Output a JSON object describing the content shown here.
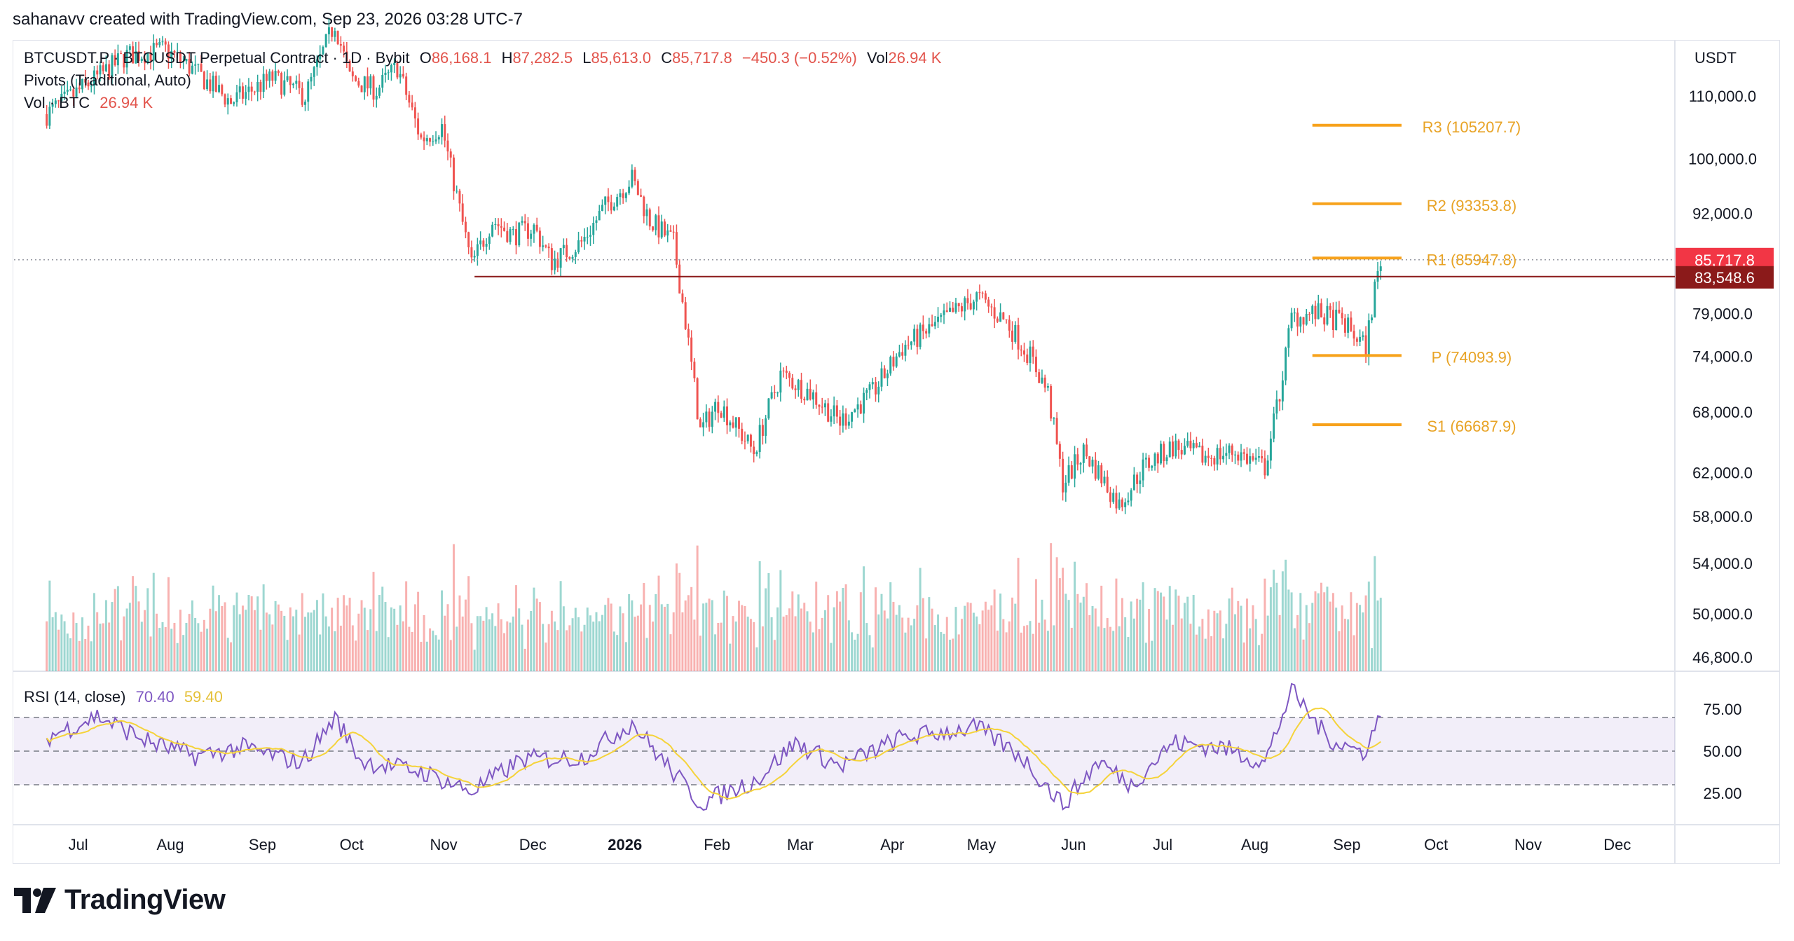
{
  "header": {
    "attribution": "sahanavv created with TradingView.com, Sep 23, 2026 03:28 UTC-7"
  },
  "legend": {
    "symbol": "BTCUSDT.P · BTCUSDT Perpetual Contract · 1D · Bybit",
    "o_label": "O",
    "o_value": "86,168.1",
    "h_label": "H",
    "h_value": "87,282.5",
    "l_label": "L",
    "l_value": "85,613.0",
    "c_label": "C",
    "c_value": "85,717.8",
    "change": "−450.3 (−0.52%)",
    "vol_label": "Vol",
    "vol_value": "26.94 K",
    "pivots": "Pivots (Traditional, Auto)",
    "vol_btc_label": "Vol · BTC",
    "vol_btc_value": "26.94 K"
  },
  "rsi_legend": {
    "label": "RSI (14, close)",
    "rsi_value": "70.40",
    "ma_value": "59.40"
  },
  "brand": {
    "name": "TradingView",
    "icon": "tradingview-logo-icon"
  },
  "colors": {
    "up": "#26a69a",
    "down": "#ef5350",
    "pivot": "#f7a21b",
    "pivot_text": "#e8a325",
    "rsi": "#7e57c2",
    "rsi_ma": "#f5d33a",
    "support_line": "#8b1a1a",
    "price_badge": "#f23645",
    "support_badge": "#8b1a1a"
  },
  "chart_data": {
    "type": "candlestick",
    "currency": "USDT",
    "price_scale": "log",
    "price_ticks": [
      110000,
      100000,
      92000,
      79000,
      74000,
      68000,
      62000,
      58000,
      54000,
      50000,
      46800
    ],
    "price_tick_labels": [
      "110,000.0",
      "100,000.0",
      "92,000.0",
      "79,000.0",
      "74,000.0",
      "68,000.0",
      "62,000.0",
      "58,000.0",
      "54,000.0",
      "50,000.0",
      "46,800.0"
    ],
    "x_labels": [
      "Jul",
      "Aug",
      "Sep",
      "Oct",
      "Nov",
      "Dec",
      "2026",
      "Feb",
      "Mar",
      "Apr",
      "May",
      "Jun",
      "Jul",
      "Aug",
      "Sep",
      "Oct",
      "Nov",
      "Dec"
    ],
    "x_label_bold": "2026",
    "price_path": [
      {
        "date": "2025-07-01",
        "price": 107000
      },
      {
        "date": "2025-07-15",
        "price": 112000
      },
      {
        "date": "2025-07-28",
        "price": 117000
      },
      {
        "date": "2025-08-10",
        "price": 118000
      },
      {
        "date": "2025-08-18",
        "price": 115000
      },
      {
        "date": "2025-09-01",
        "price": 109000
      },
      {
        "date": "2025-09-15",
        "price": 113000
      },
      {
        "date": "2025-09-26",
        "price": 110000
      },
      {
        "date": "2025-10-06",
        "price": 123000
      },
      {
        "date": "2025-10-11",
        "price": 113000
      },
      {
        "date": "2025-10-20",
        "price": 111000
      },
      {
        "date": "2025-10-27",
        "price": 115000
      },
      {
        "date": "2025-11-04",
        "price": 103000
      },
      {
        "date": "2025-11-11",
        "price": 105000
      },
      {
        "date": "2025-11-21",
        "price": 85000
      },
      {
        "date": "2025-11-28",
        "price": 91000
      },
      {
        "date": "2025-12-05",
        "price": 89000
      },
      {
        "date": "2025-12-12",
        "price": 90000
      },
      {
        "date": "2025-12-18",
        "price": 85500
      },
      {
        "date": "2025-12-28",
        "price": 88000
      },
      {
        "date": "2026-01-05",
        "price": 93000
      },
      {
        "date": "2026-01-14",
        "price": 97000
      },
      {
        "date": "2026-01-20",
        "price": 91000
      },
      {
        "date": "2026-01-28",
        "price": 88000
      },
      {
        "date": "2026-02-01",
        "price": 78000
      },
      {
        "date": "2026-02-06",
        "price": 66000
      },
      {
        "date": "2026-02-12",
        "price": 69000
      },
      {
        "date": "2026-02-24",
        "price": 64000
      },
      {
        "date": "2026-03-05",
        "price": 72000
      },
      {
        "date": "2026-03-15",
        "price": 70000
      },
      {
        "date": "2026-03-25",
        "price": 67000
      },
      {
        "date": "2026-04-05",
        "price": 70000
      },
      {
        "date": "2026-04-15",
        "price": 75000
      },
      {
        "date": "2026-04-28",
        "price": 78000
      },
      {
        "date": "2026-05-10",
        "price": 81000
      },
      {
        "date": "2026-05-20",
        "price": 78000
      },
      {
        "date": "2026-05-28",
        "price": 74000
      },
      {
        "date": "2026-06-03",
        "price": 70000
      },
      {
        "date": "2026-06-08",
        "price": 61000
      },
      {
        "date": "2026-06-15",
        "price": 64000
      },
      {
        "date": "2026-06-20",
        "price": 62000
      },
      {
        "date": "2026-06-27",
        "price": 59000
      },
      {
        "date": "2026-07-05",
        "price": 62500
      },
      {
        "date": "2026-07-15",
        "price": 64500
      },
      {
        "date": "2026-07-25",
        "price": 63500
      },
      {
        "date": "2026-08-05",
        "price": 64000
      },
      {
        "date": "2026-08-15",
        "price": 62500
      },
      {
        "date": "2026-08-20",
        "price": 70000
      },
      {
        "date": "2026-08-24",
        "price": 78500
      },
      {
        "date": "2026-09-01",
        "price": 79000
      },
      {
        "date": "2026-09-10",
        "price": 78000
      },
      {
        "date": "2026-09-18",
        "price": 75000
      },
      {
        "date": "2026-09-21",
        "price": 82000
      },
      {
        "date": "2026-09-23",
        "price": 85717.8
      }
    ],
    "last_price": "85,717.8",
    "horizontal_line": {
      "price": 83548.6,
      "label": "83,548.6",
      "from_date": "2025-11-22"
    },
    "pivots": [
      {
        "name": "R3",
        "value": 105207.7,
        "label": "R3 (105207.7)"
      },
      {
        "name": "R2",
        "value": 93353.8,
        "label": "R2 (93353.8)"
      },
      {
        "name": "R1",
        "value": 85947.8,
        "label": "R1 (85947.8)"
      },
      {
        "name": "P",
        "value": 74093.9,
        "label": "P (74093.9)"
      },
      {
        "name": "S1",
        "value": 66687.9,
        "label": "S1 (66687.9)"
      }
    ],
    "rsi": {
      "ticks": [
        75,
        50,
        25
      ],
      "tick_labels": [
        "75.00",
        "50.00",
        "25.00"
      ],
      "upper_band": 70,
      "lower_band": 30,
      "last_value": 70.4,
      "last_ma": 59.4,
      "path": [
        {
          "date": "2025-07-01",
          "value": 58
        },
        {
          "date": "2025-07-18",
          "value": 71
        },
        {
          "date": "2025-08-05",
          "value": 55
        },
        {
          "date": "2025-08-20",
          "value": 47
        },
        {
          "date": "2025-09-05",
          "value": 52
        },
        {
          "date": "2025-09-25",
          "value": 43
        },
        {
          "date": "2025-10-06",
          "value": 70
        },
        {
          "date": "2025-10-15",
          "value": 44
        },
        {
          "date": "2025-11-04",
          "value": 38
        },
        {
          "date": "2025-11-21",
          "value": 26
        },
        {
          "date": "2025-12-08",
          "value": 45
        },
        {
          "date": "2025-12-28",
          "value": 46
        },
        {
          "date": "2026-01-14",
          "value": 67
        },
        {
          "date": "2026-01-25",
          "value": 43
        },
        {
          "date": "2026-02-06",
          "value": 19
        },
        {
          "date": "2026-02-25",
          "value": 33
        },
        {
          "date": "2026-03-10",
          "value": 55
        },
        {
          "date": "2026-03-25",
          "value": 41
        },
        {
          "date": "2026-04-15",
          "value": 58
        },
        {
          "date": "2026-05-10",
          "value": 64
        },
        {
          "date": "2026-05-25",
          "value": 47
        },
        {
          "date": "2026-06-08",
          "value": 18
        },
        {
          "date": "2026-06-20",
          "value": 44
        },
        {
          "date": "2026-07-01",
          "value": 30
        },
        {
          "date": "2026-07-15",
          "value": 55
        },
        {
          "date": "2026-08-01",
          "value": 52
        },
        {
          "date": "2026-08-15",
          "value": 43
        },
        {
          "date": "2026-08-24",
          "value": 86
        },
        {
          "date": "2026-09-05",
          "value": 58
        },
        {
          "date": "2026-09-17",
          "value": 49
        },
        {
          "date": "2026-09-23",
          "value": 70.4
        }
      ]
    }
  }
}
